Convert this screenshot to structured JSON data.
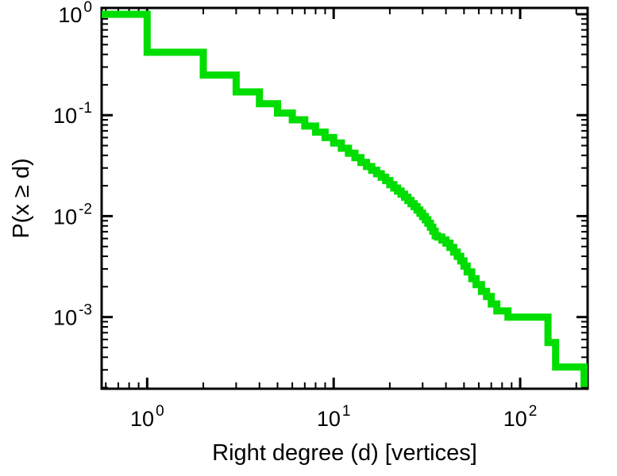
{
  "figure": {
    "background": "#ffffff",
    "axis_color": "#000000"
  },
  "chart_data": {
    "type": "line",
    "subtype": "step-ccdf",
    "title": "",
    "xlabel": "Right degree (d) [vertices]",
    "ylabel": "P(x ≥ d)",
    "x_scale": "log",
    "y_scale": "log",
    "grid": "off",
    "legend": "none",
    "x_range": [
      0.57,
      230
    ],
    "y_range": [
      0.000195,
      1.155
    ],
    "x_ticks": [
      {
        "value": 1,
        "base": "10",
        "exp": "0"
      },
      {
        "value": 10,
        "base": "10",
        "exp": "1"
      },
      {
        "value": 100,
        "base": "10",
        "exp": "2"
      }
    ],
    "y_ticks": [
      {
        "value": 1,
        "base": "10",
        "exp": "0"
      },
      {
        "value": 0.1,
        "base": "10",
        "exp": "-1"
      },
      {
        "value": 0.01,
        "base": "10",
        "exp": "-2"
      },
      {
        "value": 0.001,
        "base": "10",
        "exp": "-3"
      }
    ],
    "minor_ticks": "log-2-9",
    "line_color": "#00dd00",
    "line_width": 9,
    "initial_value": 1.0,
    "steps": [
      [
        1,
        0.42
      ],
      [
        2,
        0.25
      ],
      [
        3,
        0.17
      ],
      [
        4,
        0.13
      ],
      [
        5,
        0.105
      ],
      [
        6,
        0.09
      ],
      [
        7,
        0.078
      ],
      [
        8,
        0.068
      ],
      [
        9,
        0.06
      ],
      [
        10,
        0.053
      ],
      [
        11,
        0.047
      ],
      [
        12,
        0.042
      ],
      [
        13,
        0.038
      ],
      [
        14,
        0.034
      ],
      [
        15,
        0.031
      ],
      [
        16,
        0.0285
      ],
      [
        17,
        0.0263
      ],
      [
        18,
        0.0243
      ],
      [
        19,
        0.0225
      ],
      [
        20,
        0.0205
      ],
      [
        21,
        0.019
      ],
      [
        22,
        0.0177
      ],
      [
        23,
        0.0165
      ],
      [
        24,
        0.0154
      ],
      [
        25,
        0.0143
      ],
      [
        26,
        0.0133
      ],
      [
        27,
        0.0124
      ],
      [
        28,
        0.0115
      ],
      [
        29,
        0.0107
      ],
      [
        30,
        0.0099
      ],
      [
        31,
        0.0092
      ],
      [
        32,
        0.0085
      ],
      [
        33,
        0.0078
      ],
      [
        34,
        0.0071
      ],
      [
        35,
        0.0064
      ],
      [
        36,
        0.0062
      ],
      [
        38,
        0.0058
      ],
      [
        40,
        0.0054
      ],
      [
        42,
        0.0049
      ],
      [
        44,
        0.0044
      ],
      [
        46,
        0.004
      ],
      [
        48,
        0.0036
      ],
      [
        50,
        0.0032
      ],
      [
        52,
        0.0028
      ],
      [
        55,
        0.0024
      ],
      [
        58,
        0.0021
      ],
      [
        62,
        0.0018
      ],
      [
        66,
        0.0016
      ],
      [
        70,
        0.00135
      ],
      [
        75,
        0.00115
      ],
      [
        86,
        0.001
      ],
      [
        141,
        0.00056
      ],
      [
        155,
        0.00032
      ],
      [
        220,
        0.00022
      ]
    ]
  }
}
